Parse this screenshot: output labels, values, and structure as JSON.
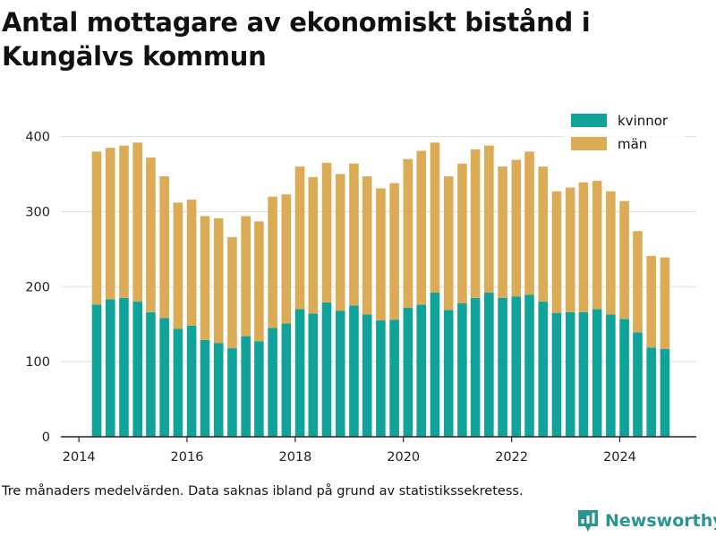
{
  "title": "Antal mottagare av ekonomiskt bistånd i Kungälvs kommun",
  "footnote": "Tre månaders medelvärden. Data saknas ibland på grund av statistikssekretess.",
  "brand": {
    "name": "Newsworthy",
    "icon": "newsworthy-logo-icon",
    "color": "#2a9490"
  },
  "colors": {
    "kvinnor": "#0fa39a",
    "man": "#dcab56",
    "grid": "#dddddd",
    "axis": "#222222"
  },
  "chart_data": {
    "type": "bar",
    "stacked": true,
    "title": "Antal mottagare av ekonomiskt bistånd i Kungälvs kommun",
    "xlabel": "",
    "ylabel": "",
    "ylim": [
      0,
      400
    ],
    "yticks": [
      0,
      100,
      200,
      300,
      400
    ],
    "xlim": [
      "2013-09-01",
      "2025-06-01"
    ],
    "xticks": [
      {
        "label": "2014",
        "date": "2014-01-01"
      },
      {
        "label": "2016",
        "date": "2016-01-01"
      },
      {
        "label": "2018",
        "date": "2018-01-01"
      },
      {
        "label": "2020",
        "date": "2020-01-01"
      },
      {
        "label": "2022",
        "date": "2022-01-01"
      },
      {
        "label": "2024",
        "date": "2024-01-01"
      }
    ],
    "grid": "horizontal",
    "legend_position": "top-right",
    "x": [
      "2014-05",
      "2014-08",
      "2014-11",
      "2015-02",
      "2015-05",
      "2015-08",
      "2015-11",
      "2016-02",
      "2016-05",
      "2016-08",
      "2016-11",
      "2017-02",
      "2017-05",
      "2017-08",
      "2017-11",
      "2018-02",
      "2018-05",
      "2018-08",
      "2018-11",
      "2019-02",
      "2019-05",
      "2019-08",
      "2019-11",
      "2020-02",
      "2020-05",
      "2020-08",
      "2020-11",
      "2021-02",
      "2021-05",
      "2021-08",
      "2021-11",
      "2022-02",
      "2022-05",
      "2022-08",
      "2022-11",
      "2023-02",
      "2023-05",
      "2023-08",
      "2023-11",
      "2024-02",
      "2024-05",
      "2024-08",
      "2024-11"
    ],
    "series": [
      {
        "name": "kvinnor",
        "color": "#0fa39a",
        "values": [
          176,
          183,
          185,
          180,
          166,
          158,
          144,
          148,
          129,
          125,
          118,
          134,
          127,
          145,
          151,
          170,
          164,
          179,
          168,
          175,
          163,
          155,
          156,
          172,
          176,
          192,
          169,
          178,
          185,
          192,
          185,
          187,
          189,
          180,
          165,
          166,
          166,
          170,
          163,
          157,
          139,
          119,
          117
        ]
      },
      {
        "name": "män",
        "color": "#dcab56",
        "values": [
          204,
          202,
          203,
          212,
          206,
          189,
          168,
          168,
          165,
          166,
          148,
          160,
          160,
          175,
          172,
          190,
          182,
          186,
          182,
          189,
          184,
          176,
          182,
          198,
          205,
          200,
          178,
          186,
          198,
          196,
          175,
          182,
          191,
          180,
          162,
          166,
          173,
          171,
          164,
          157,
          135,
          122,
          122
        ]
      }
    ]
  }
}
